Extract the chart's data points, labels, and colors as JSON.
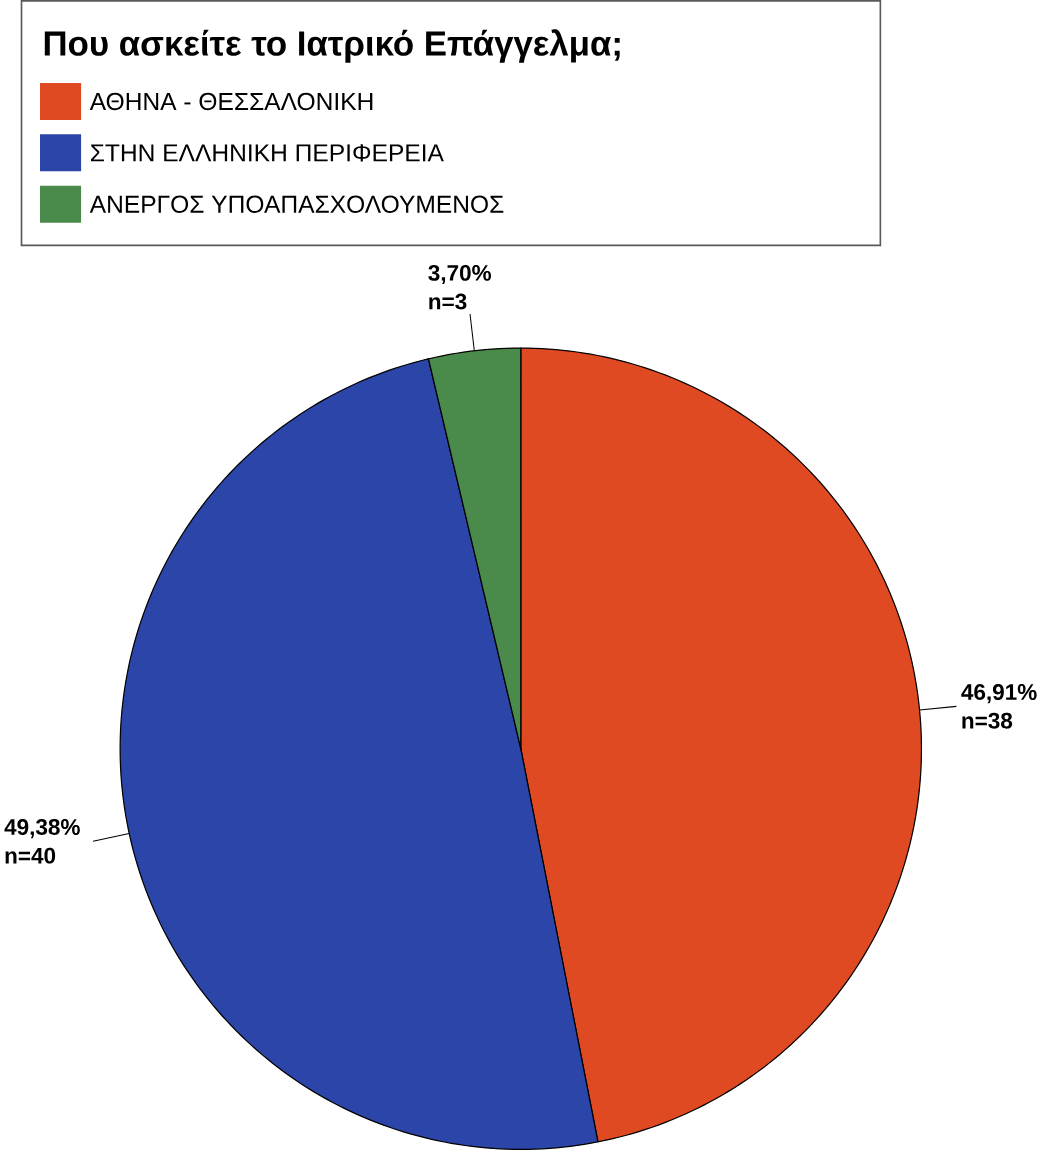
{
  "chart_data": {
    "type": "pie",
    "legend_title": "Που ασκείτε το Ιατρικό Επάγγελμα;",
    "legend": "top",
    "categories": [
      "ΑΘΗΝΑ - ΘΕΣΣΑΛΟΝΙΚΗ",
      "ΣΤΗΝ ΕΛΛΗΝΙΚΗ ΠΕΡΙΦΕΡΕΙΑ",
      "ΑΝΕΡΓΟΣ ΥΠΟΑΠΑΣΧΟΛΟΥΜΕΝΟΣ"
    ],
    "values": [
      46.91,
      49.38,
      3.7
    ],
    "colors": [
      "#e04a22",
      "#2b45a8",
      "#4a8a4a"
    ],
    "value_labels": [
      "46,91% n=38",
      "49,38% n=40",
      "3,70% n=3"
    ]
  }
}
